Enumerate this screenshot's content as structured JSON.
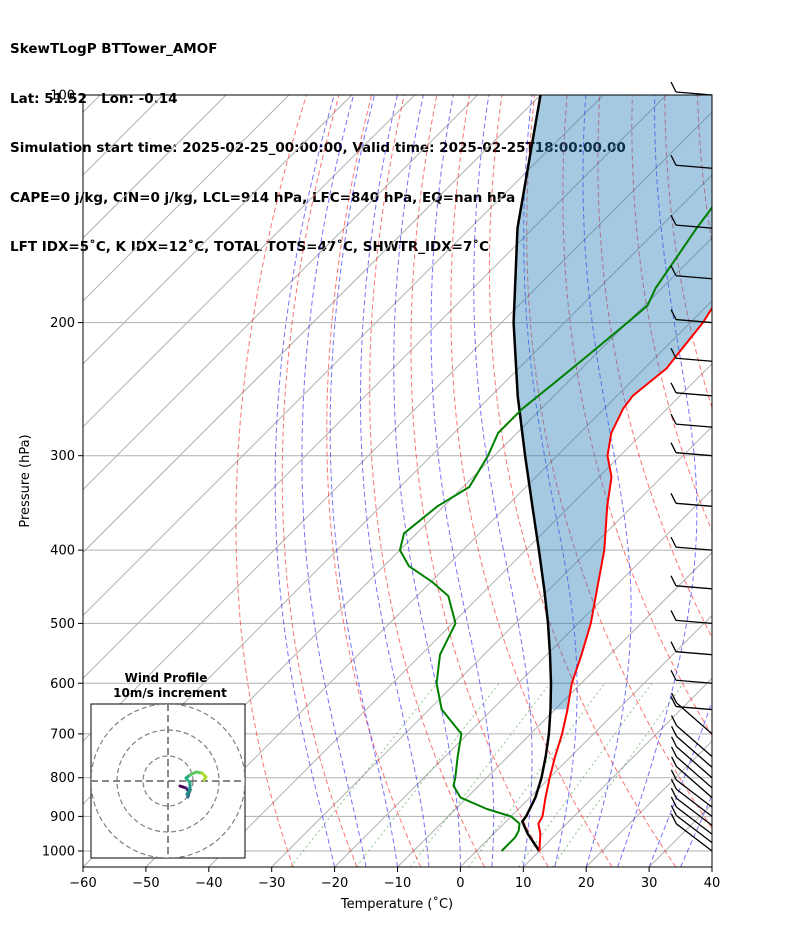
{
  "header": {
    "line1": "SkewTLogP BTTower_AMOF",
    "line2": "Lat: 51.52   Lon: -0.14",
    "line3": "Simulation start time: 2025-02-25_00:00:00, Valid time: 2025-02-25T18:00:00.00",
    "line4": "CAPE=0 j/kg, CIN=0 j/kg, LCL=914 hPa, LFC=840 hPa, EQ=nan hPa",
    "line5": "LFT IDX=5˚C, K IDX=12˚C, TOTAL TOTS=47˚C, SHWTR_IDX=7˚C"
  },
  "chart_data": {
    "type": "line",
    "subtype": "skew-t log-p",
    "xlabel": "Temperature (˚C)",
    "ylabel": "Pressure (hPa)",
    "xlim": [
      -60,
      40
    ],
    "ylim": [
      1050,
      100
    ],
    "yscale": "log",
    "grid": true,
    "x_ticks": [
      -60,
      -50,
      -40,
      -30,
      -20,
      -10,
      0,
      10,
      20,
      30,
      40
    ],
    "x_tick_labels": [
      "−60",
      "−50",
      "−40",
      "−30",
      "−20",
      "−10",
      "0",
      "10",
      "20",
      "30",
      "40"
    ],
    "y_ticks": [
      1000,
      900,
      800,
      700,
      600,
      500,
      400,
      300,
      200,
      100
    ],
    "y_tick_labels": [
      "1000",
      "900",
      "800",
      "700",
      "600",
      "500",
      "400",
      "300",
      "200",
      "100"
    ],
    "series": [
      {
        "color": "#ff0000",
        "p": [
          1000,
          950,
          920,
          900,
          850,
          800,
          750,
          700,
          650,
          600,
          550,
          500,
          450,
          400,
          350,
          320,
          300,
          280,
          260,
          250,
          240,
          230,
          220,
          200,
          180,
          160,
          150,
          140,
          130,
          120,
          110,
          100
        ],
        "t": [
          10,
          7.5,
          5.5,
          5,
          2.5,
          0,
          -2.5,
          -5,
          -8,
          -11.5,
          -14.5,
          -18,
          -22.5,
          -27.5,
          -34,
          -38,
          -42,
          -45,
          -47,
          -47.5,
          -47,
          -46.5,
          -47,
          -48,
          -50,
          -53,
          -55.5,
          -57,
          -58,
          -59,
          -59.5,
          -59.5
        ]
      },
      {
        "color": "#008000",
        "p": [
          1000,
          960,
          940,
          920,
          900,
          880,
          850,
          820,
          800,
          750,
          700,
          650,
          600,
          550,
          500,
          460,
          440,
          420,
          400,
          380,
          350,
          330,
          300,
          280,
          260,
          240,
          220,
          200,
          190,
          180,
          150,
          120,
          100
        ],
        "td": [
          4,
          4,
          3.5,
          2.5,
          0,
          -5,
          -11,
          -14,
          -15,
          -18,
          -21,
          -28,
          -33,
          -37,
          -39.5,
          -45,
          -50,
          -56,
          -60,
          -62,
          -61,
          -59,
          -61,
          -63,
          -63,
          -62,
          -61,
          -60,
          -59.5,
          -61,
          -64,
          -67,
          -68
        ]
      },
      {
        "color": "#000000",
        "p": [
          1000,
          950,
          914,
          900,
          850,
          800,
          750,
          700,
          650,
          600,
          550,
          500,
          450,
          400,
          350,
          300,
          250,
          200,
          150,
          100
        ],
        "t": [
          10,
          5.5,
          2.6,
          2.4,
          0.9,
          -1.3,
          -4,
          -7.1,
          -10.7,
          -14.8,
          -19.5,
          -24.8,
          -30.9,
          -37.9,
          -45.9,
          -55.1,
          -65.8,
          -78.1,
          -92.5,
          -110
        ]
      }
    ],
    "wind_barbs_p": [
      1000,
      975,
      950,
      925,
      900,
      875,
      850,
      825,
      800,
      775,
      750,
      700,
      650,
      600,
      550,
      500,
      450,
      400,
      350,
      300,
      275,
      250,
      225,
      200,
      175,
      150,
      125,
      100
    ],
    "inset": {
      "title": "Wind Profile",
      "subtitle": "10m/s increment"
    }
  }
}
